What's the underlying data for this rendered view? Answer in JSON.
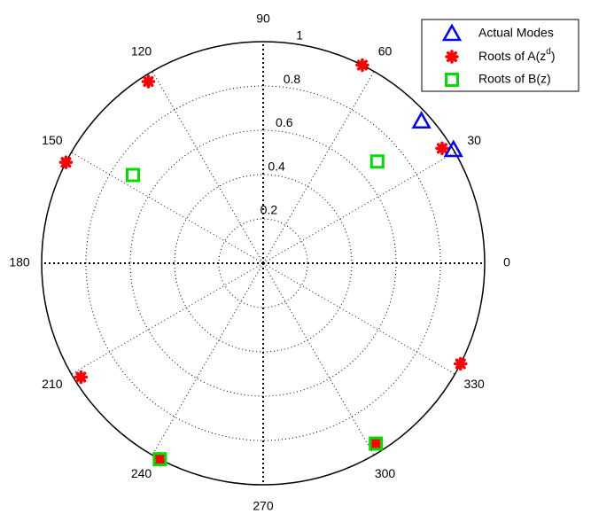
{
  "chart_data": {
    "type": "polar",
    "rlim": [
      0,
      1
    ],
    "rticks": [
      0.2,
      0.4,
      0.6,
      0.8,
      1
    ],
    "thetaticks": [
      0,
      30,
      60,
      90,
      120,
      150,
      180,
      210,
      240,
      270,
      300,
      330
    ],
    "grid": true,
    "legend": "top-right",
    "series": [
      {
        "name": "Actual Modes",
        "marker": "triangle",
        "color": "#0000ff",
        "theta": [
          41.9,
          30.8
        ],
        "r": [
          0.96,
          1.0
        ]
      },
      {
        "name": "Roots of A(z^d)",
        "marker": "star",
        "color": "#ff0000",
        "theta": [
          63.4,
          122.3,
          152.9,
          32.7,
          333,
          212,
          242.2,
          302
        ],
        "r": [
          1.0,
          0.97,
          1.0,
          0.96,
          1.0,
          0.97,
          1.0,
          0.96
        ]
      },
      {
        "name": "Roots of B(z)",
        "marker": "square",
        "color": "#00dd00",
        "theta": [
          41.7,
          145.9,
          242.2,
          302
        ],
        "r": [
          0.69,
          0.71,
          1.0,
          0.96
        ]
      }
    ]
  }
}
